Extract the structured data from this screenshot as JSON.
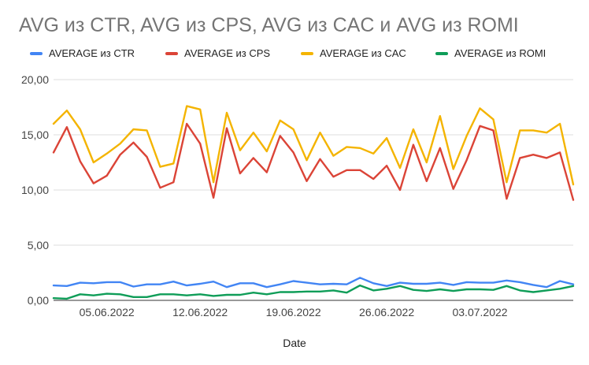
{
  "title": "AVG из CTR, AVG из CPS, AVG из CAC и AVG из ROMI",
  "chart_data": {
    "type": "line",
    "xlabel": "Date",
    "ylabel": "",
    "ylim": [
      0,
      20
    ],
    "yticks": [
      "0,00",
      "5,00",
      "10,00",
      "15,00",
      "20,00"
    ],
    "xtick_labels": [
      "05.06.2022",
      "12.06.2022",
      "19.06.2022",
      "26.06.2022",
      "03.07.2022"
    ],
    "xtick_indices": [
      4,
      11,
      18,
      25,
      32
    ],
    "grid": true,
    "legend_position": "top",
    "series": [
      {
        "name": "AVERAGE из CTR",
        "color": "#4285F4",
        "values": [
          1.35,
          1.3,
          1.6,
          1.55,
          1.65,
          1.65,
          1.25,
          1.45,
          1.45,
          1.7,
          1.35,
          1.5,
          1.7,
          1.2,
          1.55,
          1.55,
          1.2,
          1.45,
          1.75,
          1.6,
          1.45,
          1.5,
          1.45,
          2.05,
          1.55,
          1.3,
          1.6,
          1.5,
          1.5,
          1.6,
          1.4,
          1.65,
          1.6,
          1.6,
          1.8,
          1.65,
          1.4,
          1.2,
          1.75,
          1.45
        ]
      },
      {
        "name": "AVERAGE из CPS",
        "color": "#DB4437",
        "values": [
          13.4,
          15.7,
          12.6,
          10.6,
          11.3,
          13.2,
          14.3,
          13.0,
          10.2,
          10.7,
          16.0,
          14.2,
          9.3,
          15.6,
          11.5,
          12.9,
          11.6,
          14.9,
          13.4,
          10.8,
          12.8,
          11.2,
          11.8,
          11.8,
          11.0,
          12.2,
          10.0,
          14.1,
          10.8,
          13.8,
          10.1,
          12.7,
          15.8,
          15.4,
          9.2,
          12.9,
          13.2,
          12.9,
          13.4,
          9.1
        ]
      },
      {
        "name": "AVERAGE из CAC",
        "color": "#F4B400",
        "values": [
          16.0,
          17.2,
          15.5,
          12.5,
          13.3,
          14.2,
          15.5,
          15.4,
          12.1,
          12.4,
          17.6,
          17.3,
          10.7,
          17.0,
          13.6,
          15.2,
          13.5,
          16.3,
          15.5,
          12.7,
          15.2,
          13.1,
          13.9,
          13.8,
          13.3,
          14.7,
          12.0,
          15.5,
          12.5,
          16.7,
          11.9,
          14.9,
          17.4,
          16.4,
          10.7,
          15.4,
          15.4,
          15.2,
          16.0,
          10.5
        ]
      },
      {
        "name": "AVERAGE из ROMI",
        "color": "#0F9D58",
        "values": [
          0.2,
          0.15,
          0.55,
          0.45,
          0.6,
          0.55,
          0.3,
          0.3,
          0.55,
          0.55,
          0.45,
          0.55,
          0.4,
          0.5,
          0.5,
          0.7,
          0.55,
          0.75,
          0.75,
          0.8,
          0.8,
          0.9,
          0.7,
          1.35,
          0.9,
          1.05,
          1.3,
          0.95,
          0.85,
          1.0,
          0.85,
          1.0,
          1.0,
          0.95,
          1.3,
          0.9,
          0.75,
          0.9,
          1.05,
          1.3
        ]
      }
    ]
  }
}
